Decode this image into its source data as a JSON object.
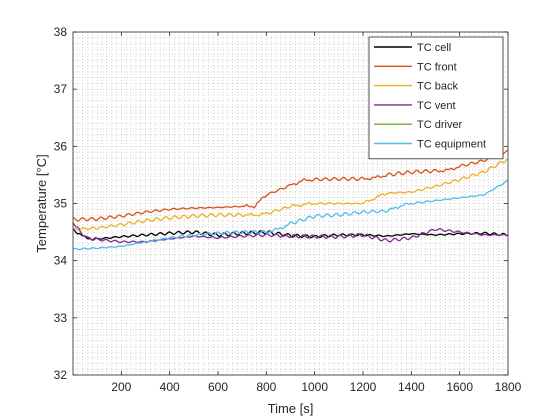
{
  "chart_data": {
    "type": "line",
    "title": "",
    "xlabel": "Time [s]",
    "ylabel": "Temperature [°C]",
    "xlim": [
      0,
      1800
    ],
    "ylim": [
      32,
      38
    ],
    "xticks": [
      200,
      400,
      600,
      800,
      1000,
      1200,
      1400,
      1600,
      1800
    ],
    "yticks": [
      32,
      33,
      34,
      35,
      36,
      37,
      38
    ],
    "grid": "minor-dotted",
    "legend_position": "top-right",
    "series": [
      {
        "name": "TC cell",
        "color": "#000000",
        "x": [
          0,
          50,
          100,
          200,
          300,
          400,
          500,
          600,
          700,
          800,
          900,
          1000,
          1100,
          1200,
          1300,
          1400,
          1500,
          1600,
          1700,
          1800
        ],
        "y": [
          34.55,
          34.4,
          34.38,
          34.42,
          34.45,
          34.48,
          34.5,
          34.45,
          34.48,
          34.5,
          34.44,
          34.42,
          34.45,
          34.45,
          34.43,
          34.47,
          34.45,
          34.47,
          34.48,
          34.45
        ]
      },
      {
        "name": "TC front",
        "color": "#D95319",
        "x": [
          0,
          100,
          200,
          300,
          400,
          500,
          600,
          700,
          750,
          800,
          900,
          950,
          1000,
          1100,
          1200,
          1250,
          1300,
          1400,
          1500,
          1550,
          1600,
          1700,
          1800
        ],
        "y": [
          34.72,
          34.73,
          34.78,
          34.85,
          34.9,
          34.92,
          34.93,
          34.95,
          34.95,
          35.15,
          35.32,
          35.4,
          35.42,
          35.43,
          35.43,
          35.45,
          35.5,
          35.55,
          35.57,
          35.58,
          35.65,
          35.75,
          35.92
        ]
      },
      {
        "name": "TC back",
        "color": "#EDB120",
        "x": [
          0,
          100,
          200,
          300,
          400,
          500,
          600,
          700,
          750,
          800,
          900,
          950,
          1000,
          1100,
          1200,
          1250,
          1300,
          1400,
          1500,
          1600,
          1700,
          1800
        ],
        "y": [
          34.55,
          34.57,
          34.63,
          34.7,
          34.75,
          34.78,
          34.8,
          34.8,
          34.8,
          34.82,
          34.95,
          34.98,
          35.0,
          35.0,
          35.0,
          35.1,
          35.18,
          35.2,
          35.3,
          35.42,
          35.55,
          35.78
        ]
      },
      {
        "name": "TC vent",
        "color": "#7E2F8E",
        "x": [
          0,
          30,
          60,
          100,
          200,
          300,
          400,
          500,
          600,
          700,
          800,
          900,
          1000,
          1100,
          1200,
          1300,
          1400,
          1500,
          1600,
          1700,
          1800
        ],
        "y": [
          34.68,
          34.5,
          34.4,
          34.37,
          34.33,
          34.33,
          34.38,
          34.43,
          34.4,
          34.43,
          34.45,
          34.43,
          34.42,
          34.42,
          34.45,
          34.35,
          34.4,
          34.55,
          34.5,
          34.45,
          34.45
        ]
      },
      {
        "name": "TC driver",
        "color": "#77AC30",
        "x": [
          0,
          1800
        ],
        "y": [
          null,
          null
        ]
      },
      {
        "name": "TC equipment",
        "color": "#4DBEEE",
        "x": [
          0,
          100,
          200,
          300,
          400,
          500,
          600,
          700,
          800,
          850,
          900,
          1000,
          1100,
          1200,
          1300,
          1350,
          1400,
          1500,
          1600,
          1700,
          1800
        ],
        "y": [
          34.2,
          34.22,
          34.25,
          34.33,
          34.4,
          34.45,
          34.48,
          34.5,
          34.5,
          34.55,
          34.65,
          34.78,
          34.8,
          34.85,
          34.87,
          34.95,
          35.0,
          35.05,
          35.1,
          35.15,
          35.4
        ]
      }
    ]
  }
}
